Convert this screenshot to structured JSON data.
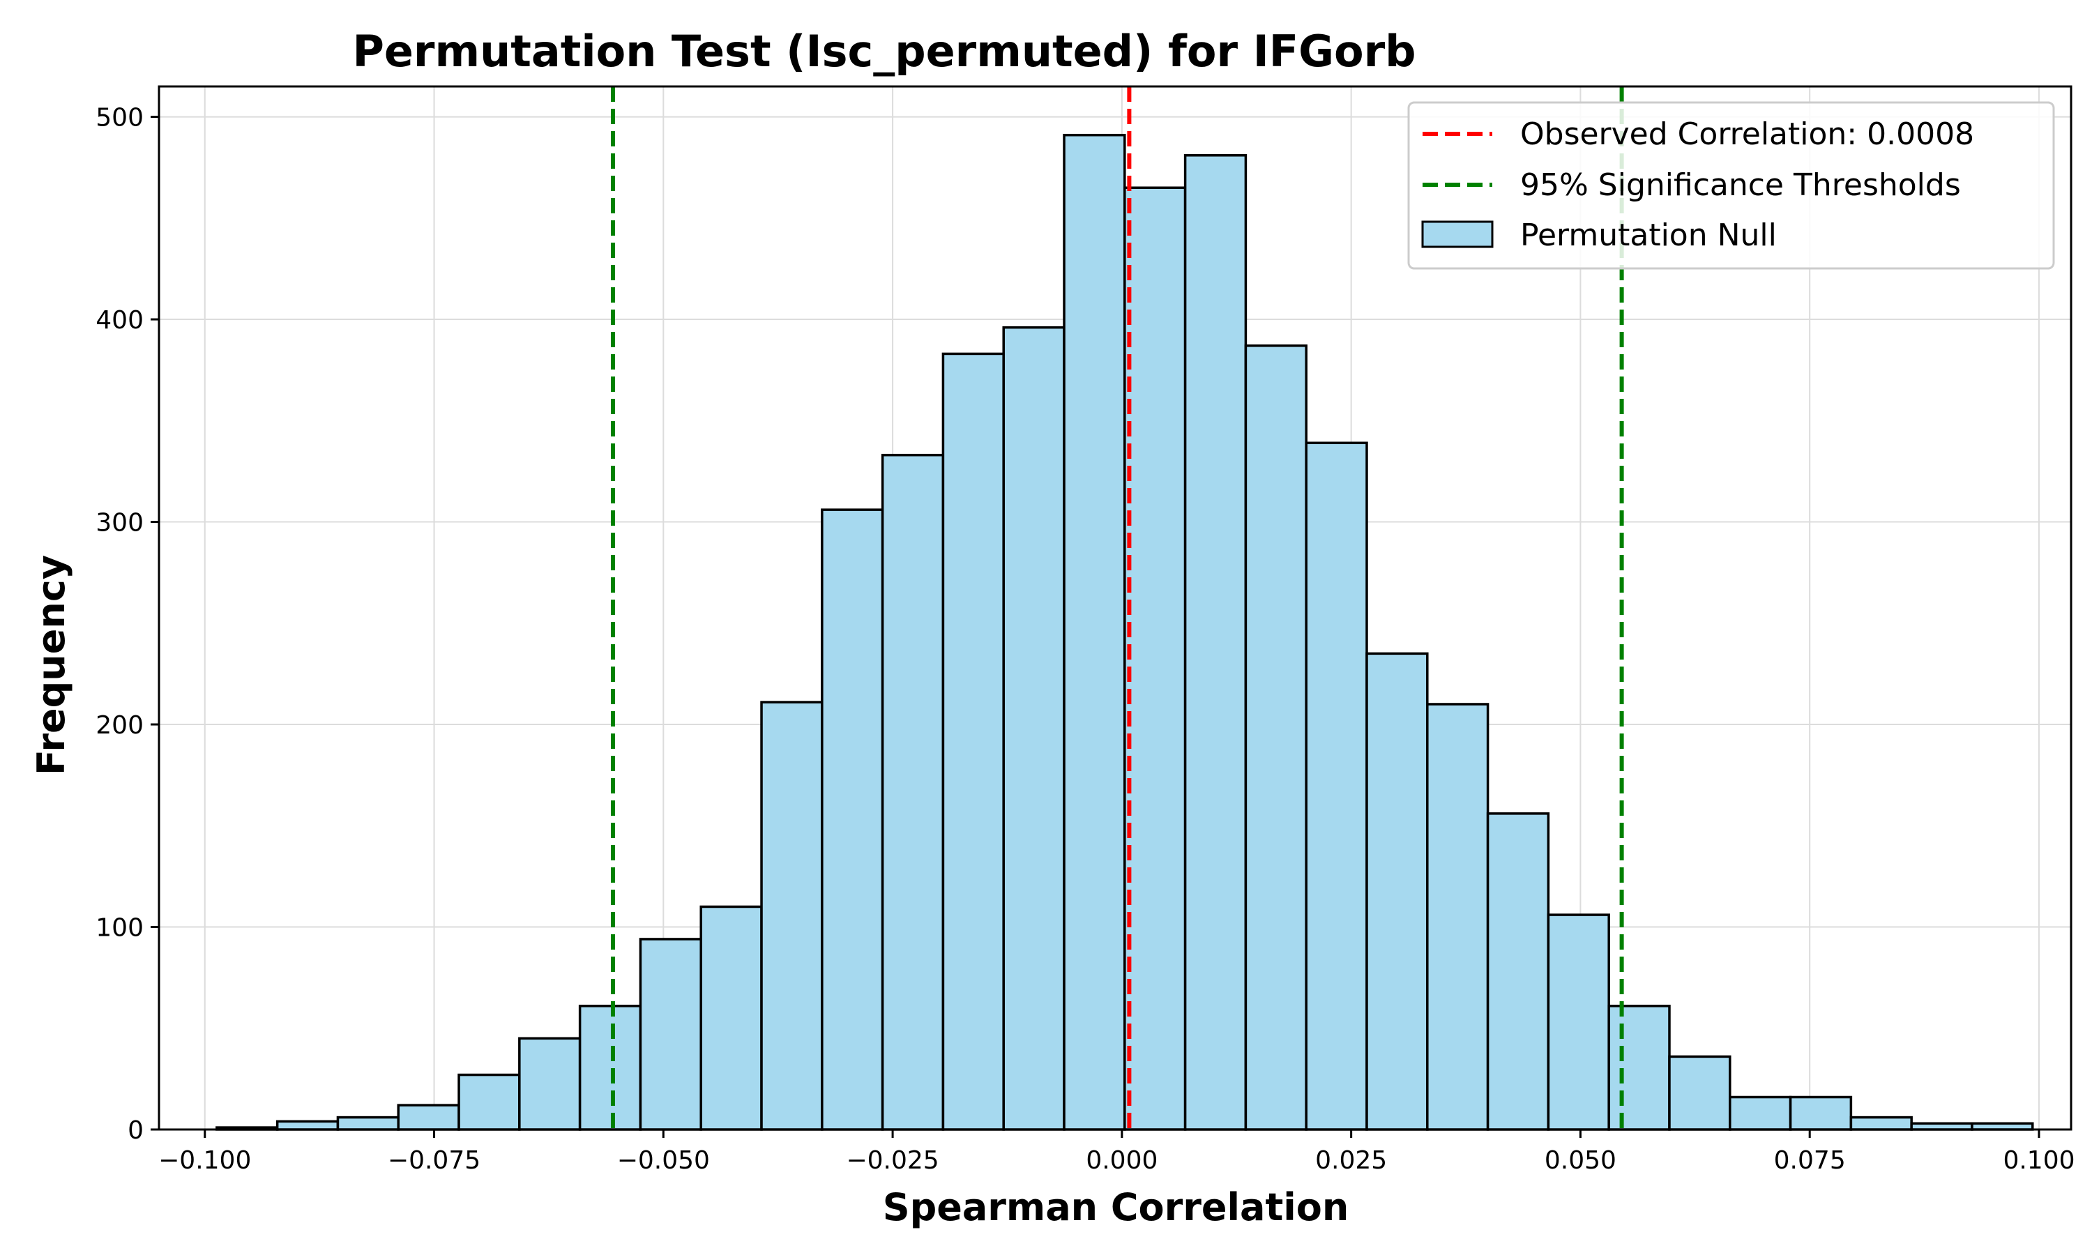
{
  "chart_data": {
    "type": "bar",
    "title": "Permutation Test (Isc_permuted) for IFGorb",
    "xlabel": "Spearman Correlation",
    "ylabel": "Frequency",
    "xlim": [
      -0.105,
      0.1035
    ],
    "ylim": [
      0,
      515
    ],
    "xticks": [
      -0.1,
      -0.075,
      -0.05,
      -0.025,
      0.0,
      0.025,
      0.05,
      0.075,
      0.1
    ],
    "xtick_labels": [
      "−0.100",
      "−0.075",
      "−0.050",
      "−0.025",
      "0.000",
      "0.025",
      "0.050",
      "0.075",
      "0.100"
    ],
    "yticks": [
      0,
      100,
      200,
      300,
      400,
      500
    ],
    "ytick_labels": [
      "0",
      "100",
      "200",
      "300",
      "400",
      "500"
    ],
    "grid": true,
    "legend_position": "top-right",
    "bin_start": -0.0987,
    "bin_width": 0.0066,
    "series": [
      {
        "name": "Permutation Null",
        "color": "#a6d9ef",
        "edge_color": "#000000",
        "values": [
          1,
          4,
          6,
          12,
          27,
          45,
          61,
          94,
          110,
          211,
          306,
          333,
          383,
          396,
          491,
          465,
          481,
          387,
          339,
          235,
          210,
          156,
          106,
          61,
          36,
          16,
          16,
          6,
          3,
          3
        ]
      }
    ],
    "lines": [
      {
        "name": "Observed Correlation: 0.0008",
        "x": [
          0.0008
        ],
        "color": "#ff0000",
        "style": "dashed"
      },
      {
        "name": "95% Significance Thresholds",
        "x": [
          -0.0555,
          0.0545
        ],
        "color": "#008000",
        "style": "dashed"
      }
    ]
  }
}
